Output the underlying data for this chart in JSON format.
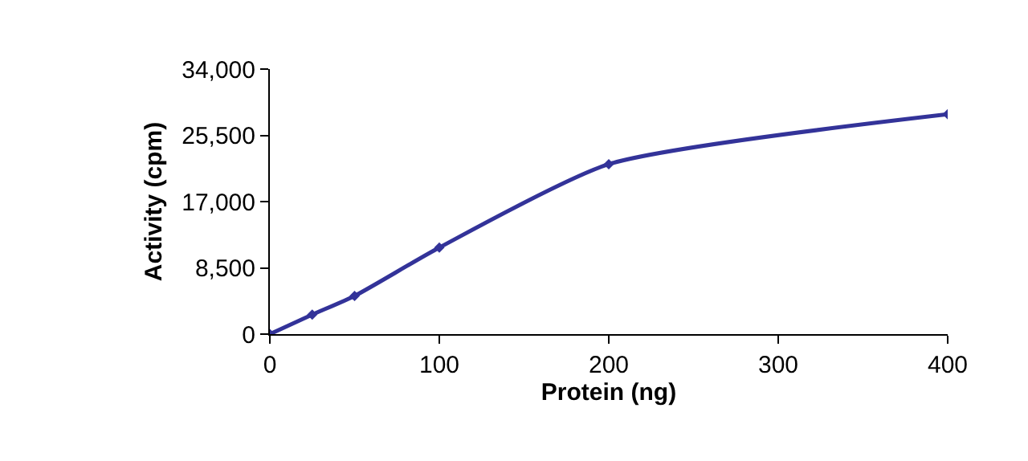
{
  "chart_data": {
    "type": "line",
    "xlabel": "Protein (ng)",
    "ylabel": "Activity (cpm)",
    "x": [
      0,
      25,
      50,
      100,
      200,
      400
    ],
    "series": [
      {
        "color": "#333399",
        "values": [
          0,
          2500,
          4900,
          11100,
          21800,
          28200
        ]
      }
    ],
    "xlim": [
      0,
      400
    ],
    "xticks": [
      0,
      100,
      200,
      300,
      400
    ],
    "ylim": [
      0,
      34000
    ],
    "yticks": [
      {
        "value": 0,
        "label": "0"
      },
      {
        "value": 8500,
        "label": "8,500"
      },
      {
        "value": 17000,
        "label": "17,000"
      },
      {
        "value": 25500,
        "label": "25,500"
      },
      {
        "value": 34000,
        "label": "34,000"
      }
    ],
    "grid": false,
    "legend": false,
    "marker": "diamond",
    "line_style": "solid"
  }
}
